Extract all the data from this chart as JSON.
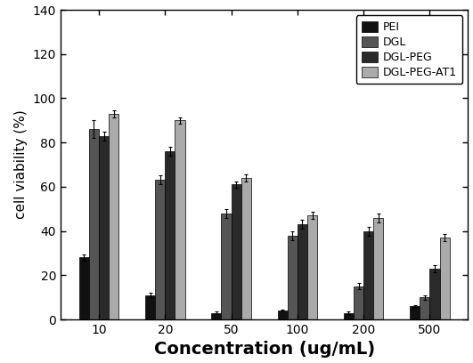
{
  "concentrations": [
    10,
    20,
    50,
    100,
    200,
    500
  ],
  "x_labels": [
    "10",
    "20",
    "50",
    "100",
    "200",
    "500"
  ],
  "series": {
    "PEI": {
      "values": [
        28,
        11,
        3,
        4,
        3,
        6
      ],
      "errors": [
        1.5,
        1.0,
        0.5,
        0.5,
        0.5,
        0.5
      ],
      "color": "#111111"
    },
    "DGL": {
      "values": [
        86,
        63,
        48,
        38,
        15,
        10
      ],
      "errors": [
        4.0,
        2.0,
        2.0,
        2.0,
        1.5,
        1.0
      ],
      "color": "#555555"
    },
    "DGL-PEG": {
      "values": [
        83,
        76,
        61,
        43,
        40,
        23
      ],
      "errors": [
        2.0,
        2.0,
        1.5,
        2.0,
        2.0,
        1.5
      ],
      "color": "#2a2a2a"
    },
    "DGL-PEG-AT1": {
      "values": [
        93,
        90,
        64,
        47,
        46,
        37
      ],
      "errors": [
        1.5,
        1.5,
        1.5,
        1.5,
        2.0,
        1.5
      ],
      "color": "#aaaaaa"
    }
  },
  "series_order": [
    "PEI",
    "DGL",
    "DGL-PEG",
    "DGL-PEG-AT1"
  ],
  "xlabel": "Concentration (ug/mL)",
  "ylabel": "cell viability (%)",
  "ylim": [
    0,
    140
  ],
  "yticks": [
    0,
    20,
    40,
    60,
    80,
    100,
    120,
    140
  ],
  "bar_width": 0.15,
  "figsize": [
    5.31,
    4.08
  ],
  "dpi": 100
}
